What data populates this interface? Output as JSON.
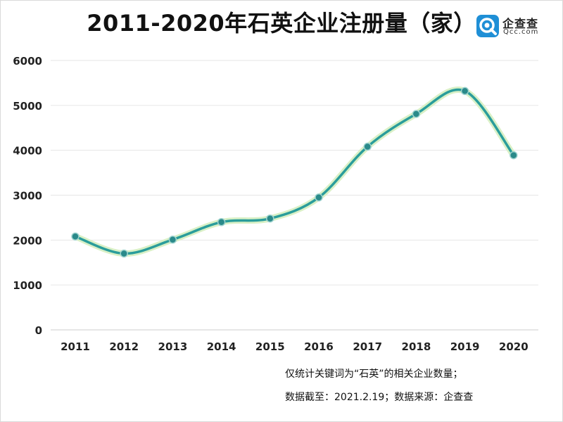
{
  "title": "2011-2020年石英企业注册量（家）",
  "logo": {
    "name": "企查查",
    "domain": "Qcc.com",
    "brand_color": "#1f8fd6"
  },
  "notes": {
    "line1": "仅统计关键词为“石英”的相关企业数量；",
    "line2": "数据截至：2021.2.19；数据来源：企查查"
  },
  "colors": {
    "line": "#2a9d9b",
    "marker": "#2a8a8a",
    "glow": "#d9f0c6",
    "grid": "#e6e6e6"
  },
  "chart_data": {
    "type": "line",
    "smooth": true,
    "title": "2011-2020年石英企业注册量（家）",
    "xlabel": "",
    "ylabel": "",
    "categories": [
      "2011",
      "2012",
      "2013",
      "2014",
      "2015",
      "2016",
      "2017",
      "2018",
      "2019",
      "2020"
    ],
    "values": [
      2080,
      1700,
      2010,
      2400,
      2480,
      2950,
      4080,
      4810,
      5320,
      3890
    ],
    "ylim": [
      0,
      6000
    ],
    "yticks": [
      0,
      1000,
      2000,
      3000,
      4000,
      5000,
      6000
    ],
    "grid": true,
    "legend": "none"
  }
}
